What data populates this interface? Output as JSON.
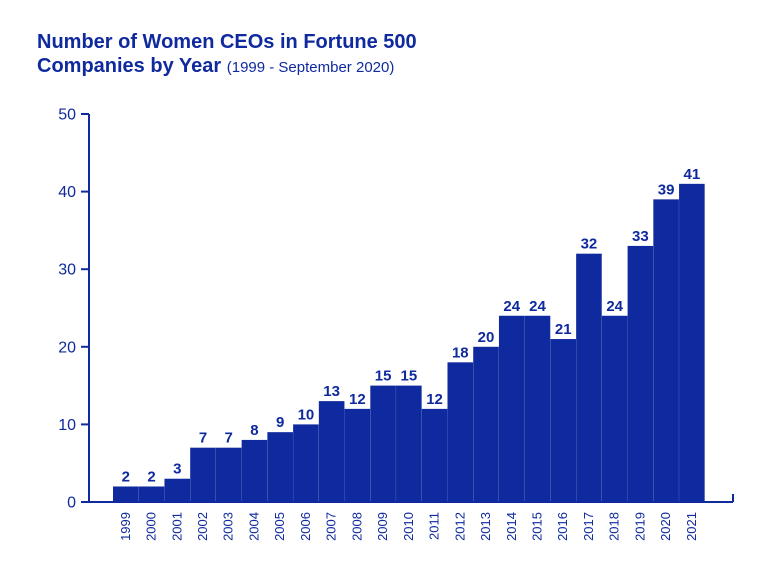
{
  "chart_data": {
    "type": "bar",
    "title": "Number of Women CEOs in Fortune 500",
    "title_line2": "Companies by Year",
    "subtitle": "(1999 - September 2020)",
    "xlabel": "",
    "ylabel": "",
    "ylim": [
      0,
      50
    ],
    "yticks": [
      0,
      10,
      20,
      30,
      40,
      50
    ],
    "grid": false,
    "categories": [
      "1999",
      "2000",
      "2001",
      "2002",
      "2003",
      "2004",
      "2005",
      "2006",
      "2007",
      "2008",
      "2009",
      "2010",
      "2011",
      "2012",
      "2013",
      "2014",
      "2015",
      "2016",
      "2017",
      "2018",
      "2019",
      "2020",
      "2021"
    ],
    "values": [
      2,
      2,
      3,
      7,
      7,
      8,
      9,
      10,
      13,
      12,
      15,
      15,
      12,
      18,
      20,
      24,
      24,
      21,
      32,
      24,
      33,
      39,
      41
    ],
    "bar_color": "#0f2a9e",
    "text_color": "#0f2a9e"
  }
}
